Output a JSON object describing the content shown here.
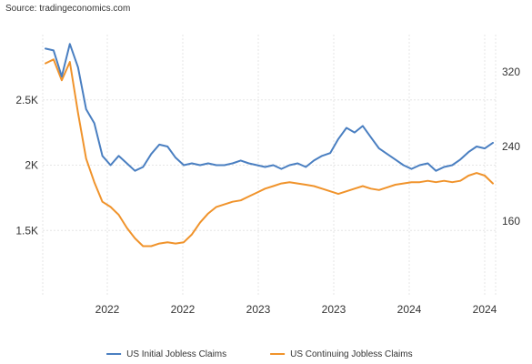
{
  "source": "Source: tradingeconomics.com",
  "chart_data": {
    "type": "line",
    "title": "",
    "xlabel": "",
    "ylabel": "",
    "grid": true,
    "legend_position": "bottom-center",
    "x_tick_labels": [
      "2022",
      "2022",
      "2023",
      "2023",
      "2024",
      "2024"
    ],
    "left_axis": {
      "ticks": [
        "1.5K",
        "2K",
        "2.5K"
      ],
      "ylim": [
        1000,
        3000
      ]
    },
    "right_axis": {
      "ticks": [
        "160",
        "240",
        "320"
      ],
      "ylim": [
        80,
        360
      ]
    },
    "x_count": 56,
    "series": [
      {
        "name": "US Initial Jobless Claims",
        "axis": "right",
        "color": "#4a7fc1",
        "values": [
          345,
          343,
          315,
          350,
          325,
          280,
          265,
          230,
          220,
          230,
          222,
          214,
          218,
          232,
          242,
          240,
          228,
          220,
          222,
          220,
          222,
          220,
          220,
          222,
          225,
          222,
          220,
          218,
          220,
          216,
          220,
          222,
          218,
          225,
          230,
          233,
          248,
          260,
          255,
          262,
          250,
          238,
          232,
          226,
          220,
          216,
          220,
          222,
          214,
          218,
          220,
          226,
          234,
          240,
          238,
          244
        ]
      },
      {
        "name": "US Continuing Jobless Claims",
        "axis": "left",
        "color": "#f0932b",
        "values": [
          2780,
          2810,
          2650,
          2790,
          2400,
          2050,
          1870,
          1720,
          1680,
          1620,
          1520,
          1440,
          1380,
          1380,
          1400,
          1410,
          1400,
          1410,
          1470,
          1560,
          1630,
          1680,
          1700,
          1720,
          1730,
          1760,
          1790,
          1820,
          1840,
          1860,
          1870,
          1860,
          1850,
          1840,
          1820,
          1800,
          1780,
          1800,
          1820,
          1840,
          1820,
          1810,
          1830,
          1850,
          1860,
          1870,
          1870,
          1880,
          1870,
          1880,
          1870,
          1880,
          1920,
          1940,
          1920,
          1860
        ]
      }
    ]
  }
}
